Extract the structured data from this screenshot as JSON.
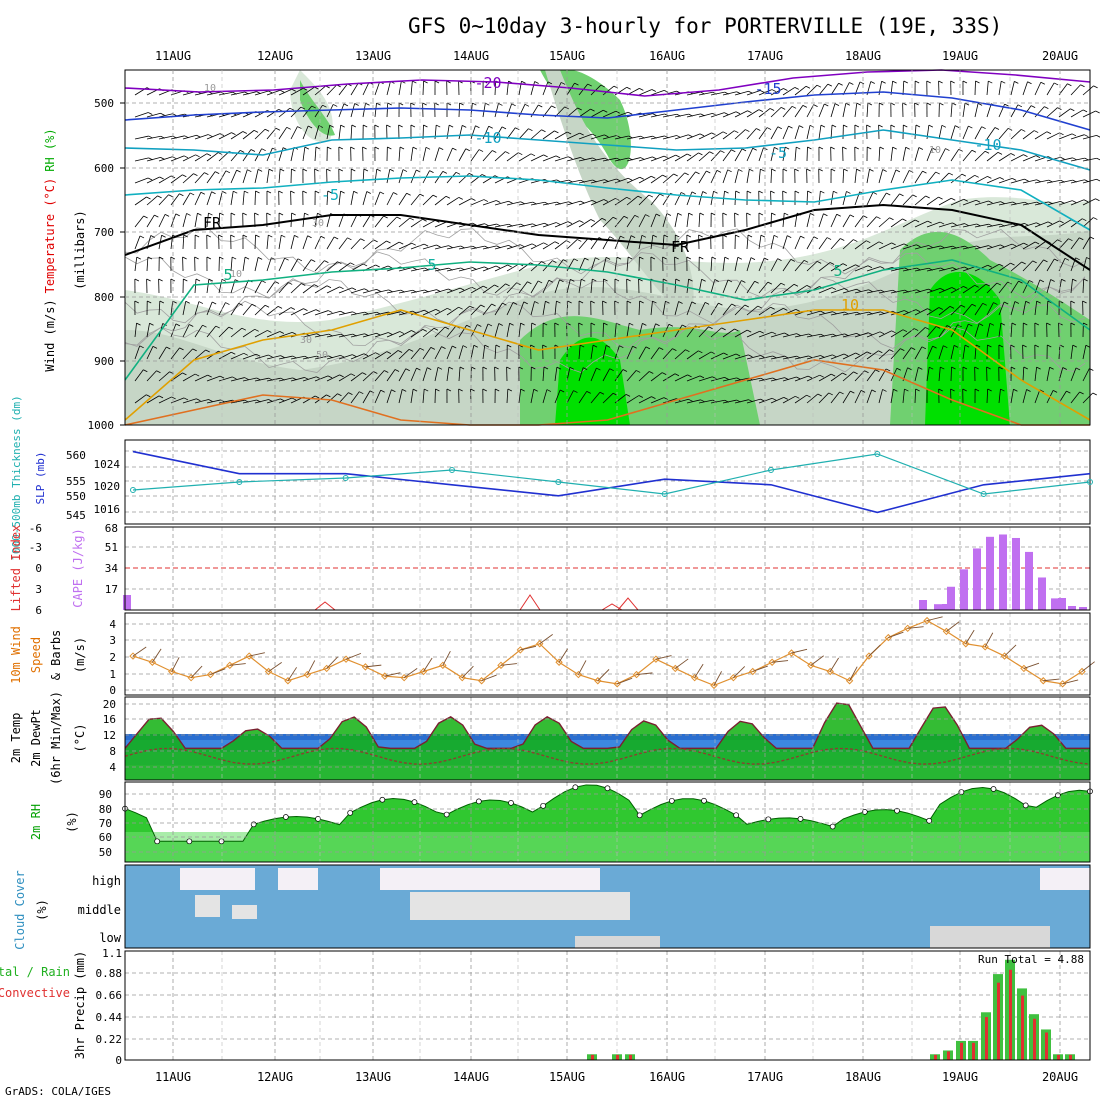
{
  "title": "GFS 0~10day 3-hourly for PORTERVILLE (19E, 33S)",
  "footer": "GrADS: COLA/IGES",
  "dates": [
    "11AUG",
    "12AUG",
    "13AUG",
    "14AUG",
    "15AUG",
    "16AUG",
    "17AUG",
    "18AUG",
    "19AUG",
    "20AUG"
  ],
  "panels": {
    "upper": {
      "ylabel_parts": [
        {
          "text": "Wind (m/s)",
          "color": "#000000"
        },
        {
          "text": "Temperature (°C)",
          "color": "#e00000"
        },
        {
          "text": "RH (%)",
          "color": "#00aa00"
        }
      ],
      "mb_label": "(millibars)",
      "levels": [
        500,
        600,
        700,
        800,
        900,
        1000
      ],
      "contour_labels": [
        {
          "text": "-20",
          "color": "#8000c0"
        },
        {
          "text": "-15",
          "color": "#2040d0"
        },
        {
          "text": "-10",
          "color": "#10a0c0"
        },
        {
          "text": "-5",
          "color": "#10a0c0"
        },
        {
          "text": "-10",
          "color": "#10a0c0"
        },
        {
          "text": "-5",
          "color": "#10b0c0"
        },
        {
          "text": "FR",
          "color": "#000000"
        },
        {
          "text": "FR",
          "color": "#000000"
        },
        {
          "text": "5",
          "color": "#10b0a0"
        },
        {
          "text": "5",
          "color": "#10b080"
        },
        {
          "text": "5",
          "color": "#10b080"
        },
        {
          "text": "10",
          "color": "#e0a000"
        },
        {
          "text": "10",
          "color": "#999999"
        },
        {
          "text": "10",
          "color": "#999999"
        },
        {
          "text": "30",
          "color": "#999999"
        },
        {
          "text": "30",
          "color": "#999999"
        },
        {
          "text": "50",
          "color": "#999999"
        },
        {
          "text": "10",
          "color": "#999999"
        }
      ]
    },
    "pressure": {
      "left_label": "1000-500mb Thickness (dm)",
      "right_label": "SLP (mb)",
      "thickness_ticks": [
        545,
        550,
        555,
        560
      ],
      "slp_ticks": [
        1016,
        1020,
        1024
      ]
    },
    "cape": {
      "left_label": "Lifted Index",
      "right_label": "CAPE (J/kg)",
      "li_ticks": [
        "-6",
        "-3",
        "0",
        "3",
        "6"
      ],
      "cape_ticks": [
        "17",
        "34",
        "51",
        "68"
      ]
    },
    "wind10": {
      "label_parts": [
        {
          "text": "10m Wind",
          "color": "#e07000"
        },
        {
          "text": "Speed",
          "color": "#e07000"
        },
        {
          "text": "& Barbs",
          "color": "#000000"
        }
      ],
      "unit": "(m/s)",
      "ticks": [
        "0",
        "1",
        "2",
        "3",
        "4"
      ]
    },
    "temp": {
      "label_parts": [
        {
          "text": "2m Temp",
          "color": "#000000"
        },
        {
          "text": "2m DewPt",
          "color": "#000000"
        },
        {
          "text": "(6hr Min/Max)",
          "color": "#000000"
        }
      ],
      "unit": "(°C)",
      "ticks": [
        "4",
        "8",
        "12",
        "16",
        "20"
      ]
    },
    "rh": {
      "label": "2m RH",
      "unit": "(%)",
      "ticks": [
        "50",
        "60",
        "70",
        "80",
        "90"
      ]
    },
    "cloud": {
      "label": "Cloud Cover",
      "unit": "(%)",
      "layers": [
        "high",
        "middle",
        "low"
      ]
    },
    "precip": {
      "left_label_total": "Total / Rain",
      "left_label_conv": "Convective",
      "unit_label": "3hr Precip (mm)",
      "ticks": [
        "0",
        "0.22",
        "0.44",
        "0.66",
        "0.88",
        "1.1"
      ],
      "run_total": "Run Total = 4.88"
    }
  },
  "colors": {
    "slp": "#2030d0",
    "thickness": "#20b0b0",
    "cape": "#c070f0",
    "li": "#e03030",
    "wind": "#e09030",
    "rain": "#40c040",
    "convective": "#e03030",
    "cloud": "#6aaad6"
  },
  "chart_data": [
    {
      "type": "line",
      "title": "1000-500mb Thickness (dm) / SLP (mb)",
      "x": [
        "11AUG",
        "12AUG",
        "13AUG",
        "14AUG",
        "15AUG",
        "16AUG",
        "17AUG",
        "18AUG",
        "19AUG",
        "20AUG"
      ],
      "series": [
        {
          "name": "SLP (mb)",
          "values": [
            1025,
            1021,
            1021,
            1019,
            1017,
            1020,
            1019,
            1014,
            1019,
            1021
          ]
        },
        {
          "name": "1000-500mb Thickness (dm)",
          "values": [
            551,
            553,
            554,
            556,
            553,
            550,
            556,
            560,
            550,
            553
          ]
        }
      ]
    },
    {
      "type": "bar",
      "title": "CAPE (J/kg)",
      "x": [
        "19AUG 00",
        "19AUG 03",
        "19AUG 06",
        "19AUG 09",
        "19AUG 12",
        "19AUG 15",
        "19AUG 18",
        "19AUG 21",
        "20AUG 00",
        "20AUG 03"
      ],
      "values": [
        5,
        20,
        35,
        53,
        63,
        65,
        62,
        50,
        28,
        10
      ],
      "ylim": [
        0,
        68
      ]
    },
    {
      "type": "line",
      "title": "10m Wind Speed (m/s)",
      "x": [
        "11AUG",
        "12AUG",
        "13AUG",
        "14AUG",
        "15AUG",
        "16AUG",
        "17AUG",
        "18AUG",
        "19AUG",
        "20AUG"
      ],
      "values": [
        1.2,
        0.6,
        2.0,
        0.8,
        0.6,
        3.0,
        0.3,
        1.2,
        4.5,
        1.2
      ],
      "ylim": [
        0,
        4.8
      ]
    },
    {
      "type": "line",
      "title": "2m Temp (°C)",
      "x": [
        "11AUG",
        "12AUG",
        "13AUG",
        "14AUG",
        "15AUG",
        "16AUG",
        "17AUG",
        "18AUG",
        "19AUG",
        "20AUG"
      ],
      "series": [
        {
          "name": "2m Temp",
          "values": [
            8,
            13,
            16,
            16,
            14,
            12,
            11,
            12,
            13,
            8
          ]
        },
        {
          "name": "2m DewPt",
          "values": [
            6,
            7,
            8,
            9,
            9,
            8,
            7,
            9,
            10,
            6
          ]
        }
      ],
      "ylim": [
        0,
        21
      ]
    },
    {
      "type": "line",
      "title": "2m RH (%)",
      "x": [
        "11AUG",
        "12AUG",
        "13AUG",
        "14AUG",
        "15AUG",
        "16AUG",
        "17AUG",
        "18AUG",
        "19AUG",
        "20AUG"
      ],
      "values": [
        70,
        73,
        83,
        85,
        92,
        82,
        72,
        76,
        91,
        90
      ],
      "ylim": [
        40,
        98
      ]
    },
    {
      "type": "bar",
      "title": "3hr Precip (mm)",
      "x": [
        "15AUG 06",
        "15AUG 12",
        "15AUG 15",
        "18AUG 21",
        "19AUG 00",
        "19AUG 03",
        "19AUG 06",
        "19AUG 09",
        "19AUG 12",
        "19AUG 15",
        "19AUG 18",
        "19AUG 21",
        "20AUG 00",
        "20AUG 03",
        "20AUG 06"
      ],
      "values": [
        0.06,
        0.06,
        0.06,
        0.06,
        0.1,
        0.2,
        0.2,
        0.5,
        0.9,
        1.05,
        0.75,
        0.48,
        0.32,
        0.06,
        0.06
      ],
      "ylim": [
        0,
        1.1
      ]
    }
  ]
}
